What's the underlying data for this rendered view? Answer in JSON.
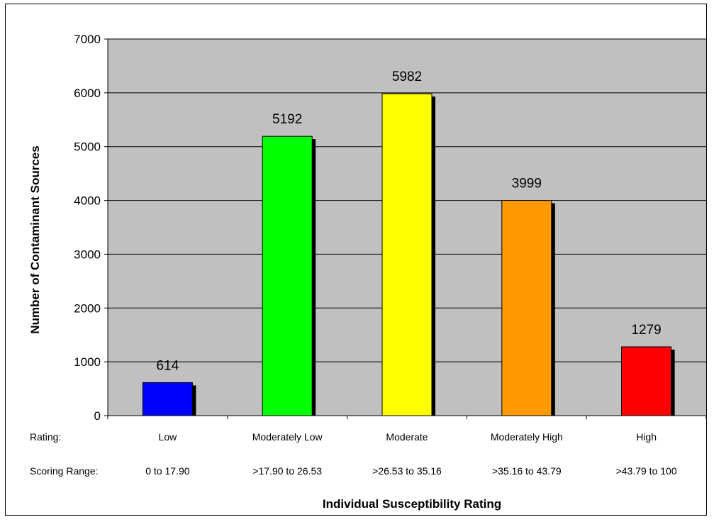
{
  "chart_data": {
    "type": "bar",
    "categories": [
      "Low",
      "Moderately Low",
      "Moderate",
      "Moderately High",
      "High"
    ],
    "scoring_ranges": [
      "0 to 17.90",
      ">17.90 to 26.53",
      ">26.53 to 35.16",
      ">35.16 to 43.79",
      ">43.79 to 100"
    ],
    "values": [
      614,
      5192,
      5982,
      3999,
      1279
    ],
    "data_labels": [
      "614",
      "5192",
      "5982",
      "3999",
      "1279"
    ],
    "ylabel": "Number of Contaminant Sources",
    "xlabel": "Individual Susceptibility Rating",
    "ylim": [
      0,
      7000
    ],
    "yticks": [
      0,
      1000,
      2000,
      3000,
      4000,
      5000,
      6000,
      7000
    ],
    "ytick_labels": [
      "0",
      "1000",
      "2000",
      "3000",
      "4000",
      "5000",
      "6000",
      "7000"
    ],
    "grid": true,
    "legend": "none",
    "row_labels": {
      "rating": "Rating:",
      "scoring_range": "Scoring Range:"
    },
    "colors": {
      "plot_background": "#c0c0c0",
      "bars": [
        "#0000ff",
        "#00ff00",
        "#ffff00",
        "#ff9900",
        "#ff0000"
      ],
      "shadow": "#000000"
    }
  }
}
